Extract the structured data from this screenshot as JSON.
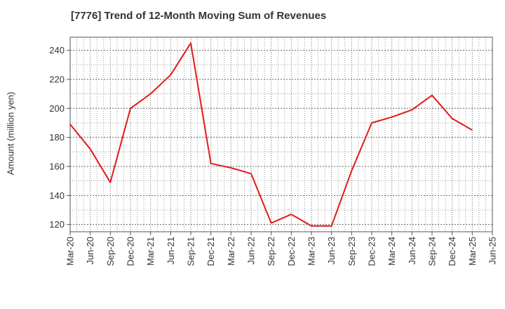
{
  "chart_data": {
    "type": "line",
    "title": "[7776]  Trend of 12-Month Moving Sum of Revenues",
    "ylabel": "Amount (million yen)",
    "xlabel": "",
    "ylim": [
      115,
      249
    ],
    "yticks": [
      120,
      140,
      160,
      180,
      200,
      220,
      240
    ],
    "x_tick_labels": [
      "Mar-20",
      "Jun-20",
      "Sep-20",
      "Dec-20",
      "Mar-21",
      "Jun-21",
      "Sep-21",
      "Dec-21",
      "Mar-22",
      "Jun-22",
      "Sep-22",
      "Dec-22",
      "Mar-23",
      "Jun-23",
      "Sep-23",
      "Dec-23",
      "Mar-24",
      "Jun-24",
      "Sep-24",
      "Dec-24",
      "Mar-25",
      "Jun-25"
    ],
    "grid": true,
    "series": [
      {
        "color": "#e31a1c",
        "x": [
          "Mar-20",
          "Jun-20",
          "Sep-20",
          "Dec-20",
          "Mar-21",
          "Jun-21",
          "Sep-21",
          "Dec-21",
          "Mar-22",
          "Jun-22",
          "Sep-22",
          "Dec-22",
          "Mar-23",
          "Jun-23",
          "Sep-23",
          "Dec-23",
          "Mar-24",
          "Jun-24",
          "Sep-24",
          "Dec-24",
          "Mar-25"
        ],
        "values": [
          189,
          172,
          149,
          200,
          210,
          223,
          245,
          162,
          159,
          155,
          121,
          127,
          119,
          119,
          157,
          190,
          194,
          199,
          209,
          193,
          185
        ]
      }
    ]
  }
}
